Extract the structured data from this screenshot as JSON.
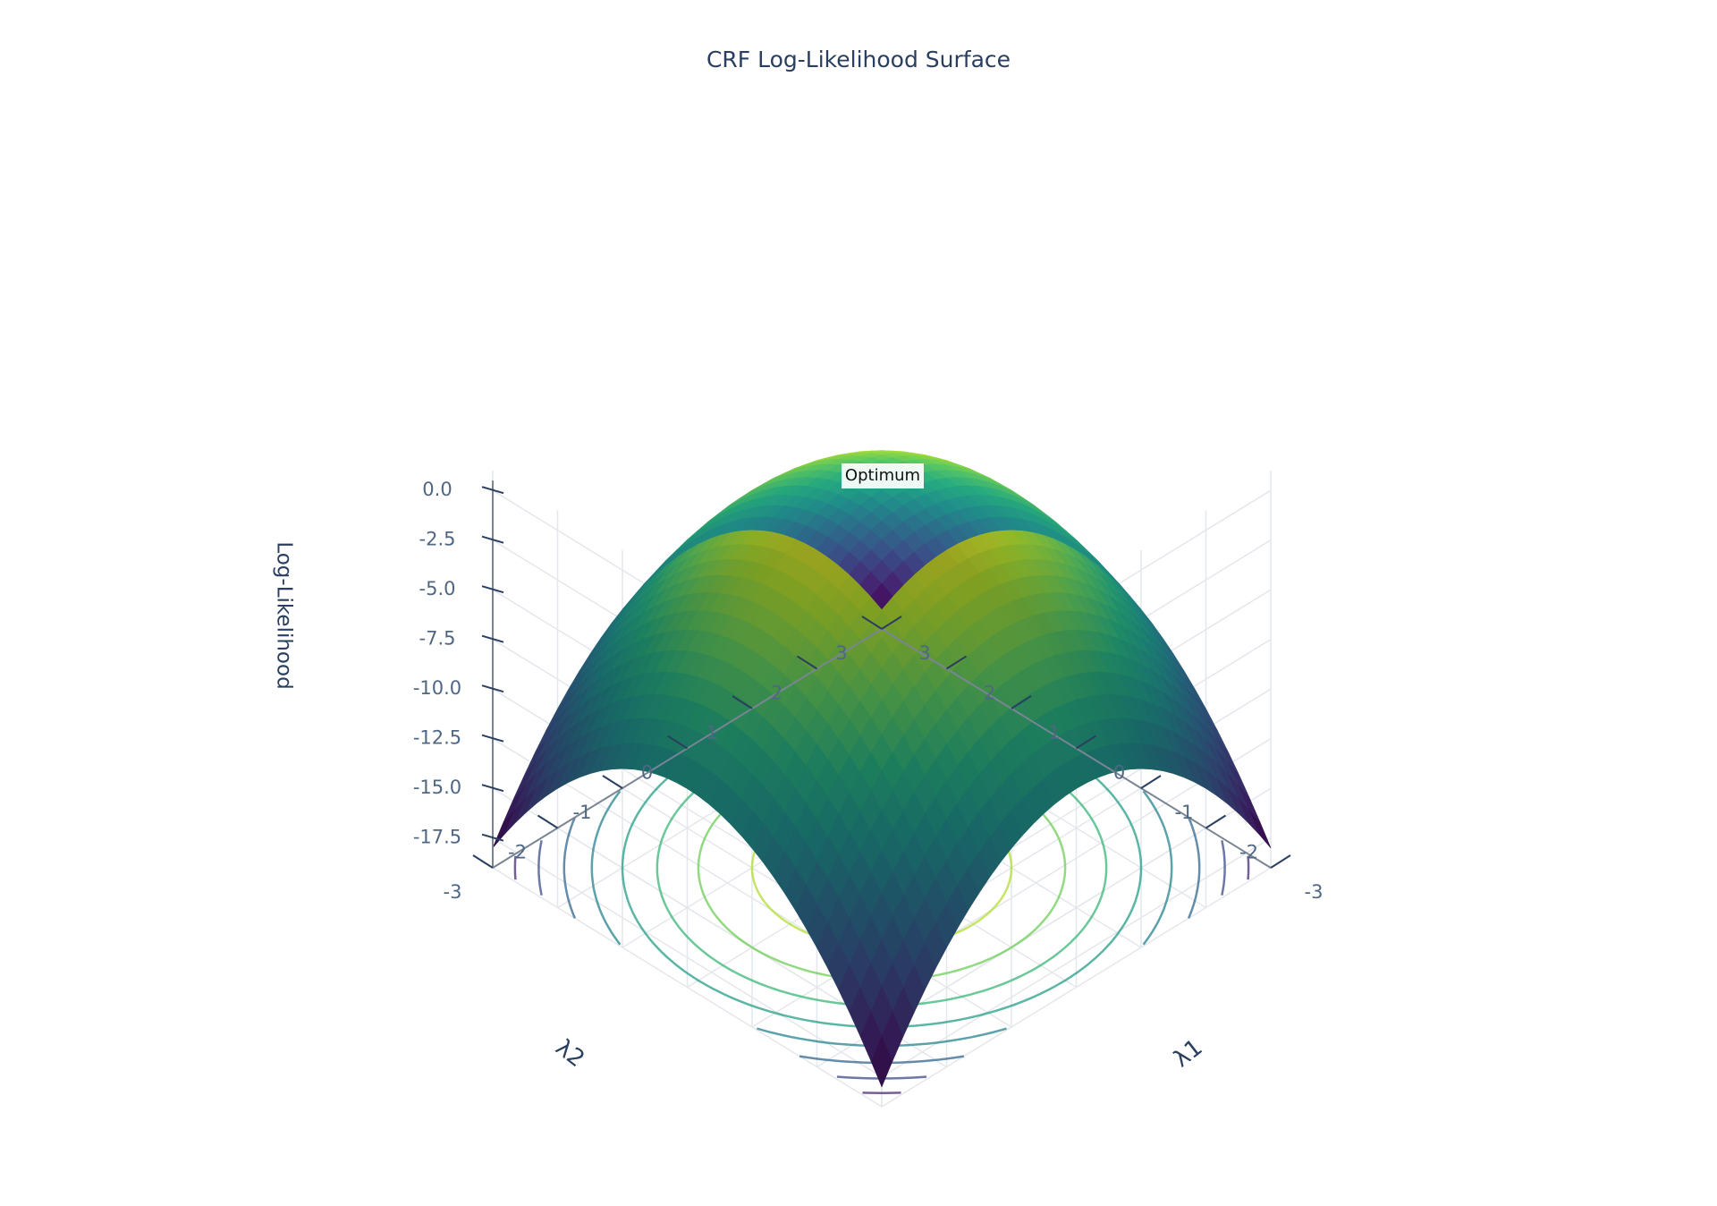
{
  "chart_data": {
    "type": "surface3d",
    "title": "CRF Log-Likelihood Surface",
    "x_axis": {
      "label": "λ1",
      "range": [
        -3,
        3
      ],
      "ticks": [
        "-3",
        "-2",
        "-1",
        "0",
        "1",
        "2",
        "3"
      ]
    },
    "y_axis": {
      "label": "λ2",
      "range": [
        -3,
        3
      ],
      "ticks": [
        "-3",
        "-2",
        "-1",
        "0",
        "1",
        "2",
        "3"
      ]
    },
    "z_axis": {
      "label": "Log-Likelihood",
      "range": [
        -19,
        1
      ],
      "ticks": [
        "0.0",
        "-2.5",
        "-5.0",
        "-7.5",
        "-10.0",
        "-12.5",
        "-15.0",
        "-17.5"
      ]
    },
    "surface": {
      "function": "z = -(λ1² + λ2²)",
      "clip_min": -18.2,
      "colorscale": "Viridis"
    },
    "contour_projection": {
      "plane": "floor",
      "levels": [
        -2,
        -4,
        -6,
        -8,
        -10,
        -12,
        -14,
        -16,
        -18
      ]
    },
    "annotation": {
      "text": "Optimum",
      "point": [
        0,
        0,
        0
      ]
    },
    "grid": true
  }
}
